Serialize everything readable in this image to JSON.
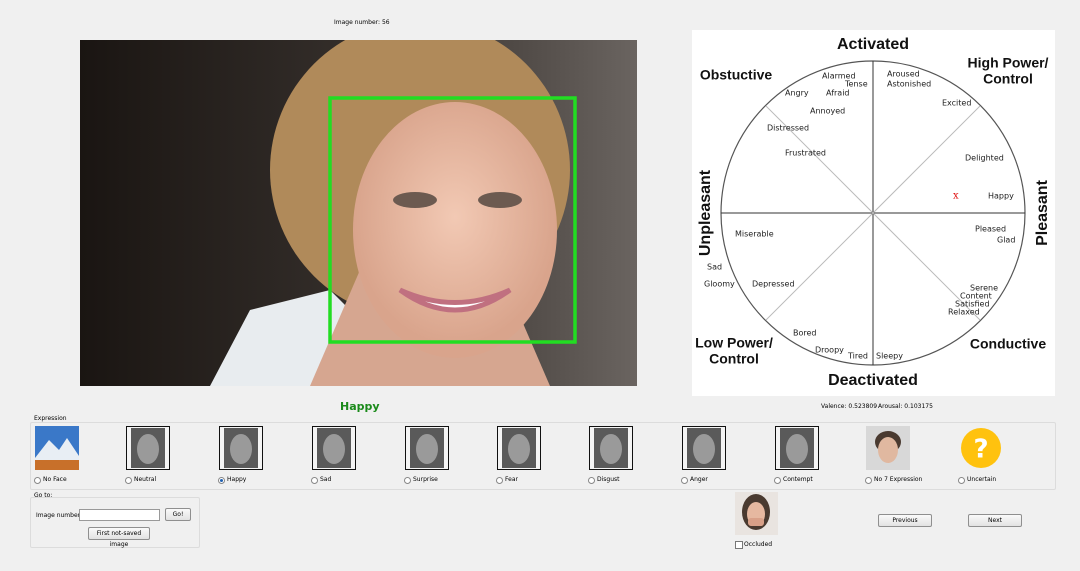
{
  "image_number": "Image number: 56",
  "circumplex": {
    "axes": {
      "top": "Activated",
      "bottom": "Deactivated",
      "left": "Unpleasant",
      "right": "Pleasant"
    },
    "quadrants": {
      "top_left": [
        "Obstuctive"
      ],
      "top_right": [
        "High Power/",
        "Control"
      ],
      "bottom_left": [
        "Low Power/",
        "Control"
      ],
      "bottom_right": [
        "Conductive"
      ]
    },
    "emotions": [
      "Alarmed",
      "Tense",
      "Afraid",
      "Angry",
      "Annoyed",
      "Distressed",
      "Frustrated",
      "Aroused",
      "Astonished",
      "Excited",
      "Delighted",
      "Happy",
      "Pleased",
      "Glad",
      "Miserable",
      "Sad",
      "Gloomy",
      "Depressed",
      "Serene",
      "Content",
      "Satisfied",
      "Relaxed",
      "Bored",
      "Droopy",
      "Tired",
      "Sleepy"
    ],
    "marker": "x"
  },
  "prediction": "Happy",
  "valence": "Valence: 0.523809",
  "arousal": "Arousal: 0.103175",
  "expression": {
    "title": "Expression",
    "options": [
      {
        "label": "No Face",
        "checked": false
      },
      {
        "label": "Neutral",
        "checked": false
      },
      {
        "label": "Happy",
        "checked": true
      },
      {
        "label": "Sad",
        "checked": false
      },
      {
        "label": "Surprise",
        "checked": false
      },
      {
        "label": "Fear",
        "checked": false
      },
      {
        "label": "Disgust",
        "checked": false
      },
      {
        "label": "Anger",
        "checked": false
      },
      {
        "label": "Contempt",
        "checked": false
      },
      {
        "label": "No 7 Expression",
        "checked": false
      },
      {
        "label": "Uncertain",
        "checked": false,
        "icon": "?"
      }
    ]
  },
  "goto": {
    "title": "Go to:",
    "image_number_label": "Image number:",
    "go_button": "Go!",
    "first_button": "First not-saved image"
  },
  "occluded": {
    "label": "Occluded",
    "checked": false
  },
  "buttons": {
    "previous": "Previous",
    "next": "Next"
  }
}
